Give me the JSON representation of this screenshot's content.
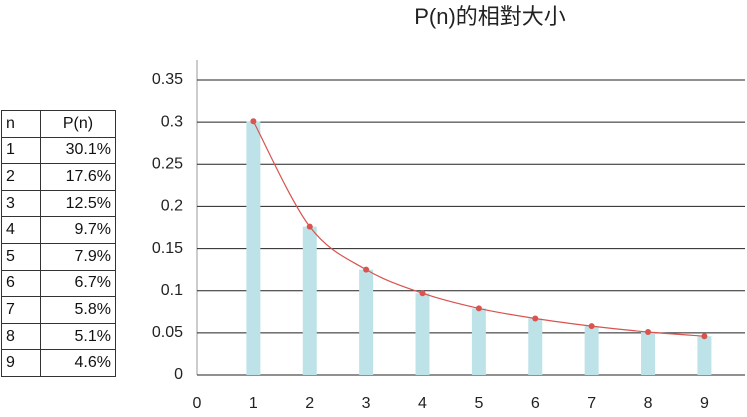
{
  "table": {
    "header": [
      "n",
      "P(n)"
    ],
    "rows": [
      [
        "1",
        "30.1%"
      ],
      [
        "2",
        "17.6%"
      ],
      [
        "3",
        "12.5%"
      ],
      [
        "4",
        "9.7%"
      ],
      [
        "5",
        "7.9%"
      ],
      [
        "6",
        "6.7%"
      ],
      [
        "7",
        "5.8%"
      ],
      [
        "8",
        "5.1%"
      ],
      [
        "9",
        "4.6%"
      ]
    ]
  },
  "chart_data": {
    "type": "bar",
    "title": "P(n)的相對大小",
    "x": [
      1,
      2,
      3,
      4,
      5,
      6,
      7,
      8,
      9
    ],
    "series": [
      {
        "type": "bar",
        "color": "#bde3e8",
        "values": [
          0.301,
          0.176,
          0.125,
          0.097,
          0.079,
          0.067,
          0.058,
          0.051,
          0.046
        ]
      },
      {
        "type": "line",
        "color": "#d9534f",
        "values": [
          0.301,
          0.176,
          0.125,
          0.097,
          0.079,
          0.067,
          0.058,
          0.051,
          0.046
        ]
      }
    ],
    "xlim": [
      0,
      9.72
    ],
    "xticks": [
      0,
      1,
      2,
      3,
      4,
      5,
      6,
      7,
      8,
      9
    ],
    "ylim": [
      0,
      0.35
    ],
    "yticks": [
      0,
      0.05,
      0.1,
      0.15,
      0.2,
      0.25,
      0.3,
      0.35
    ],
    "grid": true
  }
}
